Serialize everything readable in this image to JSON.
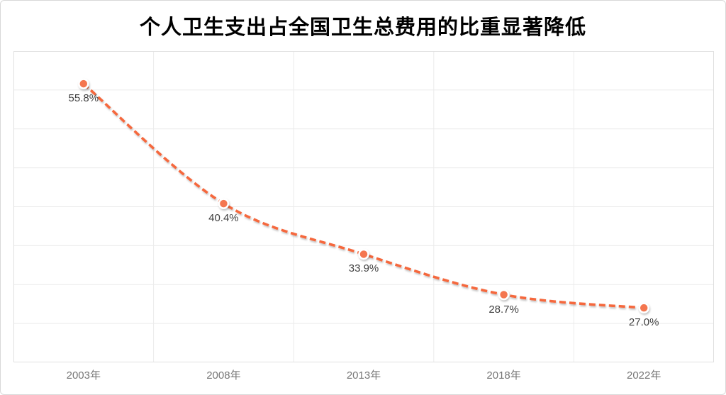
{
  "window": {
    "background": "#ffffff",
    "border_color": "#d8d8d8"
  },
  "chart": {
    "title": "个人卫生支出占全国卫生总费用的比重显著降低"
  },
  "chart_data": {
    "type": "line",
    "title": "个人卫生支出占全国卫生总费用的比重显著降低",
    "categories": [
      "2003年",
      "2008年",
      "2013年",
      "2018年",
      "2022年"
    ],
    "values": [
      55.8,
      40.4,
      33.9,
      28.7,
      27.0
    ],
    "point_labels": [
      "55.8%",
      "40.4%",
      "33.9%",
      "28.7%",
      "27.0%"
    ],
    "xlabel": "",
    "ylabel": "",
    "ylim": [
      20,
      60
    ],
    "y_step": 5,
    "y_tick_labels_visible": false,
    "grid": true,
    "legend": "none",
    "line_style": "dashed-smooth",
    "colors": {
      "line": "#f5673e",
      "marker_fill": "#f4764f",
      "marker_ring": "#ffffff",
      "grid_line": "#ebebeb",
      "plot_border": "#e0e0e0",
      "point_label": "#3f3f3f",
      "axis_label": "#767676",
      "title": "#000000"
    }
  }
}
